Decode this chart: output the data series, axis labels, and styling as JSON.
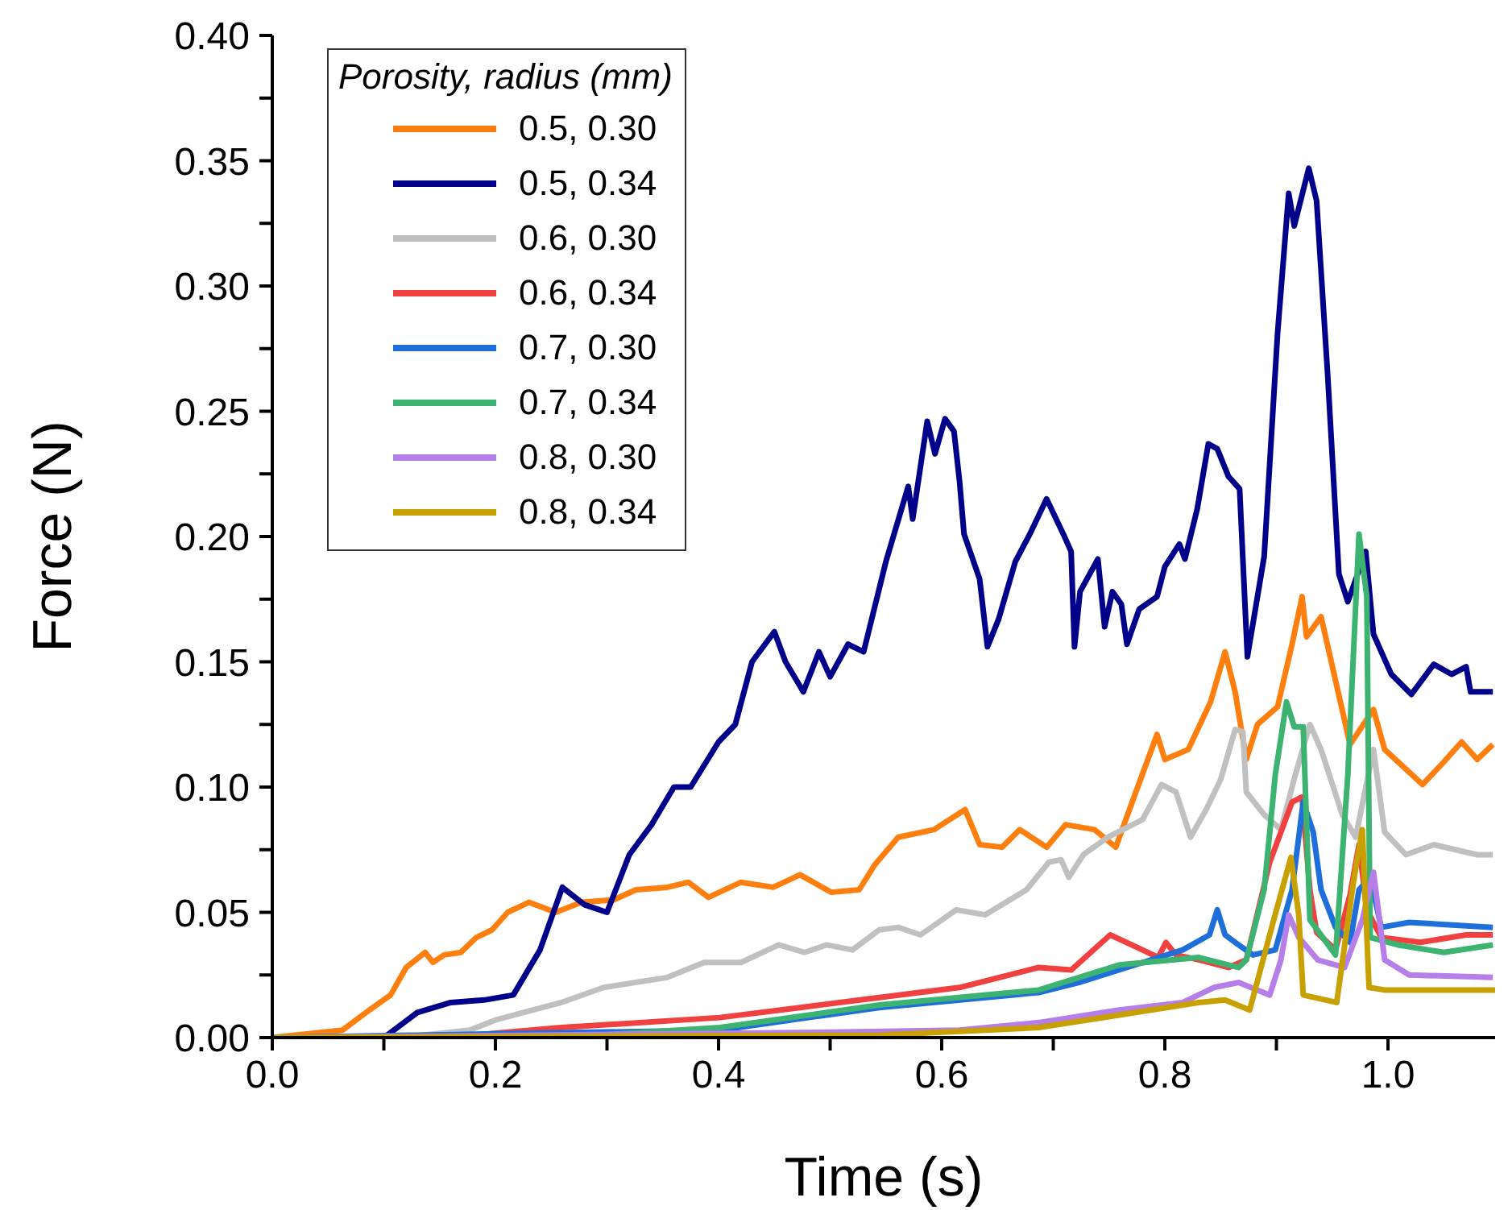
{
  "chart_data": {
    "type": "line",
    "xlabel": "Time (s)",
    "ylabel": "Force (N)",
    "legend_title": "Porosity, radius (mm)",
    "legend": "top left",
    "grid": false,
    "marker": "none",
    "line_style": "solid",
    "xlim": [
      0,
      1.096
    ],
    "ylim": [
      0,
      0.4
    ],
    "xticks": [
      {
        "value": 0,
        "label": "0.0"
      },
      {
        "value": 0.1,
        "label": null
      },
      {
        "value": 0.2,
        "label": "0.2"
      },
      {
        "value": 0.3,
        "label": null
      },
      {
        "value": 0.4,
        "label": "0.4"
      },
      {
        "value": 0.5,
        "label": null
      },
      {
        "value": 0.6,
        "label": "0.6"
      },
      {
        "value": 0.7,
        "label": null
      },
      {
        "value": 0.8,
        "label": "0.8"
      },
      {
        "value": 0.9,
        "label": null
      },
      {
        "value": 1,
        "label": "1.0"
      }
    ],
    "yticks": [
      {
        "value": 0,
        "label": "0.00"
      },
      {
        "value": 0.025,
        "label": null
      },
      {
        "value": 0.05,
        "label": "0.05"
      },
      {
        "value": 0.075,
        "label": null
      },
      {
        "value": 0.1,
        "label": "0.10"
      },
      {
        "value": 0.125,
        "label": null
      },
      {
        "value": 0.15,
        "label": "0.15"
      },
      {
        "value": 0.175,
        "label": null
      },
      {
        "value": 0.2,
        "label": "0.20"
      },
      {
        "value": 0.225,
        "label": null
      },
      {
        "value": 0.25,
        "label": "0.25"
      },
      {
        "value": 0.275,
        "label": null
      },
      {
        "value": 0.3,
        "label": "0.30"
      },
      {
        "value": 0.325,
        "label": null
      },
      {
        "value": 0.35,
        "label": "0.35"
      },
      {
        "value": 0.375,
        "label": null
      },
      {
        "value": 0.4,
        "label": "0.40"
      }
    ],
    "series": [
      {
        "name": "0.5, 0.30",
        "color": "#ff7f0e",
        "x": [
          0,
          0.063,
          0.087,
          0.106,
          0.12,
          0.137,
          0.144,
          0.154,
          0.169,
          0.183,
          0.197,
          0.211,
          0.23,
          0.254,
          0.277,
          0.306,
          0.326,
          0.354,
          0.373,
          0.391,
          0.42,
          0.449,
          0.473,
          0.501,
          0.526,
          0.54,
          0.561,
          0.593,
          0.621,
          0.634,
          0.654,
          0.67,
          0.694,
          0.711,
          0.737,
          0.756,
          0.774,
          0.793,
          0.8,
          0.821,
          0.841,
          0.854,
          0.863,
          0.873,
          0.883,
          0.901,
          0.914,
          0.923,
          0.927,
          0.94,
          0.966,
          0.987,
          0.997,
          1.031,
          1.05,
          1.066,
          1.08,
          1.094
        ],
        "values": [
          0,
          0.003,
          0.011,
          0.017,
          0.028,
          0.034,
          0.03,
          0.033,
          0.034,
          0.04,
          0.043,
          0.05,
          0.054,
          0.05,
          0.054,
          0.055,
          0.059,
          0.06,
          0.062,
          0.056,
          0.062,
          0.06,
          0.065,
          0.058,
          0.059,
          0.069,
          0.08,
          0.083,
          0.091,
          0.077,
          0.076,
          0.083,
          0.076,
          0.085,
          0.083,
          0.076,
          0.098,
          0.121,
          0.111,
          0.115,
          0.134,
          0.154,
          0.138,
          0.111,
          0.125,
          0.132,
          0.157,
          0.176,
          0.16,
          0.168,
          0.117,
          0.131,
          0.115,
          0.101,
          0.11,
          0.118,
          0.111,
          0.117
        ]
      },
      {
        "name": "0.5, 0.34",
        "color": "#00008b",
        "x": [
          0,
          0.1,
          0.13,
          0.16,
          0.19,
          0.216,
          0.24,
          0.26,
          0.28,
          0.3,
          0.32,
          0.34,
          0.36,
          0.375,
          0.4,
          0.415,
          0.43,
          0.45,
          0.46,
          0.476,
          0.49,
          0.5,
          0.516,
          0.53,
          0.55,
          0.57,
          0.574,
          0.587,
          0.594,
          0.603,
          0.611,
          0.616,
          0.62,
          0.634,
          0.641,
          0.651,
          0.666,
          0.679,
          0.694,
          0.709,
          0.716,
          0.719,
          0.724,
          0.74,
          0.746,
          0.753,
          0.761,
          0.766,
          0.777,
          0.793,
          0.8,
          0.813,
          0.818,
          0.829,
          0.839,
          0.847,
          0.857,
          0.867,
          0.874,
          0.889,
          0.901,
          0.911,
          0.916,
          0.929,
          0.936,
          0.946,
          0.956,
          0.964,
          0.98,
          0.987,
          1.003,
          1.021,
          1.041,
          1.057,
          1.07,
          1.074,
          1.094
        ],
        "values": [
          0,
          0,
          0.01,
          0.014,
          0.015,
          0.017,
          0.035,
          0.06,
          0.053,
          0.05,
          0.073,
          0.085,
          0.1,
          0.1,
          0.118,
          0.125,
          0.15,
          0.162,
          0.15,
          0.138,
          0.154,
          0.144,
          0.157,
          0.154,
          0.19,
          0.22,
          0.207,
          0.246,
          0.233,
          0.247,
          0.242,
          0.222,
          0.201,
          0.183,
          0.156,
          0.167,
          0.19,
          0.201,
          0.215,
          0.201,
          0.194,
          0.156,
          0.178,
          0.191,
          0.164,
          0.178,
          0.173,
          0.157,
          0.171,
          0.176,
          0.188,
          0.197,
          0.191,
          0.211,
          0.237,
          0.235,
          0.224,
          0.219,
          0.152,
          0.192,
          0.281,
          0.337,
          0.324,
          0.347,
          0.334,
          0.264,
          0.185,
          0.174,
          0.194,
          0.161,
          0.145,
          0.137,
          0.149,
          0.145,
          0.148,
          0.138,
          0.138
        ]
      },
      {
        "name": "0.6, 0.30",
        "color": "#c0c0c0",
        "x": [
          0,
          0.135,
          0.177,
          0.2,
          0.259,
          0.297,
          0.354,
          0.387,
          0.42,
          0.454,
          0.477,
          0.497,
          0.52,
          0.544,
          0.561,
          0.581,
          0.613,
          0.639,
          0.676,
          0.696,
          0.707,
          0.714,
          0.727,
          0.749,
          0.78,
          0.797,
          0.81,
          0.823,
          0.837,
          0.85,
          0.863,
          0.87,
          0.873,
          0.889,
          0.904,
          0.917,
          0.93,
          0.94,
          0.959,
          0.971,
          0.987,
          0.997,
          1.016,
          1.041,
          1.08,
          1.094
        ],
        "values": [
          0,
          0.001,
          0.003,
          0.007,
          0.014,
          0.02,
          0.024,
          0.03,
          0.03,
          0.037,
          0.034,
          0.037,
          0.035,
          0.043,
          0.044,
          0.041,
          0.051,
          0.049,
          0.059,
          0.07,
          0.071,
          0.064,
          0.073,
          0.08,
          0.087,
          0.101,
          0.098,
          0.08,
          0.091,
          0.103,
          0.123,
          0.122,
          0.098,
          0.089,
          0.083,
          0.105,
          0.125,
          0.115,
          0.089,
          0.08,
          0.115,
          0.082,
          0.073,
          0.077,
          0.073,
          0.073
        ]
      },
      {
        "name": "0.6, 0.34",
        "color": "#f04040",
        "x": [
          0,
          0.18,
          0.259,
          0.401,
          0.473,
          0.544,
          0.616,
          0.687,
          0.716,
          0.751,
          0.78,
          0.794,
          0.801,
          0.81,
          0.831,
          0.857,
          0.873,
          0.894,
          0.914,
          0.923,
          0.93,
          0.936,
          0.953,
          0.966,
          0.974,
          0.981,
          0.994,
          1.029,
          1.07,
          1.094
        ],
        "values": [
          0,
          0.001,
          0.004,
          0.008,
          0.012,
          0.016,
          0.02,
          0.028,
          0.027,
          0.041,
          0.035,
          0.032,
          0.038,
          0.033,
          0.031,
          0.028,
          0.031,
          0.07,
          0.094,
          0.096,
          0.059,
          0.042,
          0.035,
          0.057,
          0.077,
          0.051,
          0.04,
          0.038,
          0.041,
          0.041
        ]
      },
      {
        "name": "0.7, 0.30",
        "color": "#1f6fdb",
        "x": [
          0,
          0.401,
          0.544,
          0.687,
          0.723,
          0.759,
          0.816,
          0.84,
          0.847,
          0.854,
          0.863,
          0.879,
          0.899,
          0.914,
          0.924,
          0.933,
          0.94,
          0.953,
          0.966,
          0.974,
          0.984,
          0.994,
          1.019,
          1.094
        ],
        "values": [
          0,
          0.003,
          0.012,
          0.018,
          0.022,
          0.027,
          0.035,
          0.041,
          0.051,
          0.041,
          0.038,
          0.033,
          0.035,
          0.059,
          0.094,
          0.082,
          0.059,
          0.044,
          0.038,
          0.059,
          0.064,
          0.044,
          0.046,
          0.044
        ]
      },
      {
        "name": "0.7, 0.34",
        "color": "#3cb371",
        "x": [
          0,
          0.294,
          0.401,
          0.544,
          0.687,
          0.759,
          0.83,
          0.866,
          0.873,
          0.889,
          0.899,
          0.909,
          0.916,
          0.924,
          0.93,
          0.953,
          0.964,
          0.974,
          0.981,
          0.984,
          1.009,
          1.05,
          1.094
        ],
        "values": [
          0,
          0.001,
          0.004,
          0.013,
          0.019,
          0.029,
          0.032,
          0.028,
          0.031,
          0.059,
          0.105,
          0.134,
          0.124,
          0.124,
          0.047,
          0.033,
          0.105,
          0.201,
          0.176,
          0.04,
          0.037,
          0.034,
          0.037
        ]
      },
      {
        "name": "0.8, 0.30",
        "color": "#b57ee8",
        "x": [
          0,
          0.473,
          0.616,
          0.687,
          0.759,
          0.816,
          0.844,
          0.866,
          0.894,
          0.904,
          0.911,
          0.92,
          0.937,
          0.961,
          0.977,
          0.987,
          0.997,
          1.019,
          1.094
        ],
        "values": [
          0,
          0.002,
          0.003,
          0.006,
          0.011,
          0.014,
          0.02,
          0.022,
          0.017,
          0.031,
          0.049,
          0.04,
          0.031,
          0.028,
          0.047,
          0.066,
          0.031,
          0.025,
          0.024
        ]
      },
      {
        "name": "0.8, 0.34",
        "color": "#c8a000",
        "x": [
          0,
          0.544,
          0.687,
          0.759,
          0.83,
          0.854,
          0.876,
          0.897,
          0.913,
          0.92,
          0.924,
          0.954,
          0.969,
          0.977,
          0.983,
          0.997,
          1.096
        ],
        "values": [
          0,
          0.001,
          0.004,
          0.009,
          0.014,
          0.015,
          0.011,
          0.046,
          0.072,
          0.049,
          0.017,
          0.014,
          0.062,
          0.083,
          0.02,
          0.019,
          0.019
        ]
      }
    ]
  }
}
